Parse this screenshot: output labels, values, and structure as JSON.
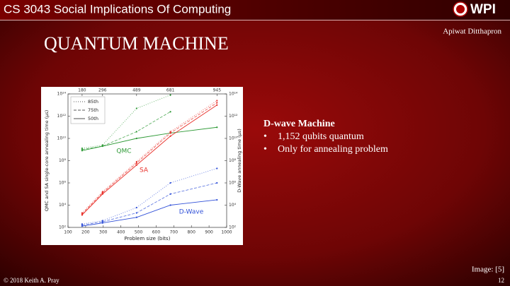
{
  "header": {
    "course": "CS 3043 Social Implications Of Computing",
    "logo": "WPI",
    "author": "Apiwat Ditthapron"
  },
  "title": "QUANTUM MACHINE",
  "content": {
    "heading": "D-wave Machine",
    "bullets": [
      "1,152 qubits quantum",
      "Only for annealing problem"
    ]
  },
  "chart_data": {
    "type": "line",
    "x_label": "Problem size (bits)",
    "y_label": "QMC and SA single-core annealing time (μs)",
    "y2_label": "D-Wave annealing time (μs)",
    "x": [
      180,
      296,
      489,
      681,
      945
    ],
    "xlim": [
      100,
      1000
    ],
    "xticks": [
      100,
      200,
      300,
      400,
      500,
      600,
      700,
      800,
      900,
      1000
    ],
    "top_xticks": [
      180,
      296,
      489,
      681,
      945
    ],
    "log_y": true,
    "ylim": [
      100,
      100000000000000.0
    ],
    "yticks": [
      {
        "value": 100,
        "label": "10²"
      },
      {
        "value": 10000,
        "label": "10⁴"
      },
      {
        "value": 1000000,
        "label": "10⁶"
      },
      {
        "value": 100000000,
        "label": "10⁸"
      },
      {
        "value": 10000000000.0,
        "label": "10¹⁰"
      },
      {
        "value": 1000000000000.0,
        "label": "10¹²"
      },
      {
        "value": 100000000000000.0,
        "label": "10¹⁴"
      }
    ],
    "y2lim": [
      100,
      100000000000000.0
    ],
    "y2ticks": [
      {
        "value": 100,
        "label": "10²"
      },
      {
        "value": 10000,
        "label": "10⁴"
      },
      {
        "value": 1000000,
        "label": "10⁶"
      },
      {
        "value": 100000000,
        "label": "10⁸"
      },
      {
        "value": 10000000000.0,
        "label": "10¹⁰"
      },
      {
        "value": 1000000000000.0,
        "label": "10¹²"
      },
      {
        "value": 100000000000000.0,
        "label": "10¹⁴"
      }
    ],
    "legend": [
      {
        "name": "85th",
        "dash": "1,2"
      },
      {
        "name": "75th",
        "dash": "4,2"
      },
      {
        "name": "50th",
        "dash": "none"
      }
    ],
    "groups": [
      {
        "name": "QMC",
        "color": "#2e9a36",
        "axis": "y",
        "series": [
          [
            1300000000.0,
            2500000000.0,
            5000000000000.0,
            80000000000000.0,
            null
          ],
          [
            1000000000.0,
            2000000000.0,
            40000000000.0,
            2500000000000.0,
            null
          ],
          [
            800000000.0,
            2000000000.0,
            10000000000.0,
            30000000000.0,
            100000000000.0
          ]
        ]
      },
      {
        "name": "SA",
        "color": "#e8302a",
        "axis": "y",
        "series": [
          [
            2000.0,
            160000.0,
            80000000.0,
            40000000000.0,
            25000000000000.0
          ],
          [
            1600.0,
            130000.0,
            60000000.0,
            30000000000.0,
            16000000000000.0
          ],
          [
            1300.0,
            100000.0,
            40000000.0,
            16000000000.0,
            10000000000000.0
          ]
        ]
      },
      {
        "name": "D-Wave",
        "color": "#3050d8",
        "axis": "y2",
        "series": [
          [
            200,
            400,
            6000,
            1000000.0,
            20000000.0
          ],
          [
            160,
            320,
            2000,
            100000.0,
            1000000.0
          ],
          [
            130,
            250,
            800,
            10000.0,
            30000.0
          ]
        ]
      }
    ]
  },
  "footer": {
    "copyright": "© 2018 Keith A. Pray",
    "page": 12,
    "credit": "Image: [5]"
  }
}
